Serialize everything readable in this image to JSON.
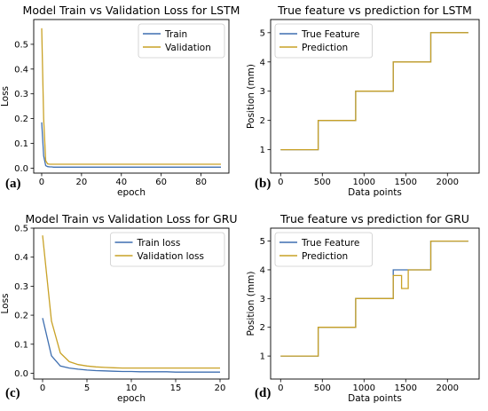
{
  "colors": {
    "blue": "#3f6fb0",
    "gold": "#c9a227",
    "axis": "#000000",
    "background": "#ffffff"
  },
  "chart_data": [
    {
      "type": "line",
      "letter": "(a)",
      "title": "Model Train vs Validation Loss for LSTM",
      "xlabel": "epoch",
      "ylabel": "Loss",
      "xlim": [
        -4,
        94
      ],
      "ylim": [
        -0.02,
        0.6
      ],
      "xticks": [
        0,
        20,
        40,
        60,
        80
      ],
      "yticks": [
        0.0,
        0.1,
        0.2,
        0.3,
        0.4,
        0.5
      ],
      "grid": false,
      "legend_position": "top-right",
      "x": [
        0,
        1,
        2,
        3,
        4,
        5,
        6,
        8,
        10,
        15,
        20,
        30,
        40,
        50,
        60,
        70,
        80,
        90
      ],
      "series": [
        {
          "name": "Train",
          "color": "blue",
          "values": [
            0.185,
            0.05,
            0.01,
            0.006,
            0.005,
            0.005,
            0.004,
            0.004,
            0.004,
            0.004,
            0.004,
            0.004,
            0.004,
            0.004,
            0.004,
            0.004,
            0.004,
            0.004
          ]
        },
        {
          "name": "Validation",
          "color": "gold",
          "values": [
            0.565,
            0.2,
            0.03,
            0.017,
            0.016,
            0.016,
            0.016,
            0.016,
            0.016,
            0.016,
            0.016,
            0.016,
            0.016,
            0.016,
            0.016,
            0.016,
            0.016,
            0.016
          ]
        }
      ]
    },
    {
      "type": "line",
      "letter": "(b)",
      "title": "True feature vs prediction for LSTM",
      "xlabel": "Data points",
      "ylabel": "Position (mm)",
      "xlim": [
        -120,
        2380
      ],
      "ylim": [
        0.2,
        5.45
      ],
      "xticks": [
        0,
        500,
        1000,
        1500,
        2000
      ],
      "yticks": [
        1,
        2,
        3,
        4,
        5
      ],
      "grid": false,
      "legend_position": "top-left",
      "x": [
        0,
        450,
        450,
        900,
        900,
        1350,
        1350,
        1800,
        1800,
        2250
      ],
      "series": [
        {
          "name": "True Feature",
          "color": "blue",
          "values": [
            1.0,
            1.0,
            2.0,
            2.0,
            3.0,
            3.0,
            4.0,
            4.0,
            5.0,
            5.0
          ]
        },
        {
          "name": "Prediction",
          "color": "gold",
          "values": [
            1.0,
            1.0,
            2.0,
            2.0,
            3.0,
            3.0,
            4.0,
            4.0,
            5.0,
            5.0
          ]
        }
      ]
    },
    {
      "type": "line",
      "letter": "(c)",
      "title": "Model Train vs Validation Loss for GRU",
      "xlabel": "epoch",
      "ylabel": "Loss",
      "xlim": [
        -1,
        21
      ],
      "ylim": [
        -0.02,
        0.5
      ],
      "xticks": [
        0,
        5,
        10,
        15,
        20
      ],
      "yticks": [
        0.0,
        0.1,
        0.2,
        0.3,
        0.4,
        0.5
      ],
      "grid": false,
      "legend_position": "top-right",
      "x": [
        0,
        1,
        2,
        3,
        4,
        5,
        6,
        7,
        8,
        9,
        10,
        11,
        12,
        13,
        14,
        15,
        16,
        17,
        18,
        19,
        20
      ],
      "series": [
        {
          "name": "Train loss",
          "color": "blue",
          "values": [
            0.19,
            0.06,
            0.025,
            0.018,
            0.014,
            0.011,
            0.009,
            0.008,
            0.007,
            0.006,
            0.006,
            0.005,
            0.005,
            0.005,
            0.005,
            0.004,
            0.004,
            0.004,
            0.004,
            0.004,
            0.004
          ]
        },
        {
          "name": "Validation loss",
          "color": "gold",
          "values": [
            0.475,
            0.18,
            0.07,
            0.04,
            0.03,
            0.025,
            0.022,
            0.02,
            0.019,
            0.018,
            0.018,
            0.018,
            0.018,
            0.018,
            0.018,
            0.018,
            0.018,
            0.018,
            0.018,
            0.018,
            0.018
          ]
        }
      ]
    },
    {
      "type": "line",
      "letter": "(d)",
      "title": "True feature vs prediction for GRU",
      "xlabel": "Data points",
      "ylabel": "Position (mm)",
      "xlim": [
        -120,
        2380
      ],
      "ylim": [
        0.2,
        5.45
      ],
      "xticks": [
        0,
        500,
        1000,
        1500,
        2000
      ],
      "yticks": [
        1,
        2,
        3,
        4,
        5
      ],
      "grid": false,
      "legend_position": "top-left",
      "x": [
        0,
        450,
        450,
        900,
        900,
        1350,
        1350,
        1450,
        1450,
        1530,
        1530,
        1800,
        1800,
        2250
      ],
      "series": [
        {
          "name": "True Feature",
          "color": "blue",
          "values": [
            1.0,
            1.0,
            2.0,
            2.0,
            3.0,
            3.0,
            4.0,
            4.0,
            4.0,
            4.0,
            4.0,
            4.0,
            5.0,
            5.0
          ]
        },
        {
          "name": "Prediction",
          "color": "gold",
          "values": [
            1.0,
            1.0,
            2.0,
            2.0,
            3.0,
            3.0,
            3.8,
            3.8,
            3.35,
            3.35,
            4.0,
            4.0,
            5.0,
            5.0
          ]
        }
      ]
    }
  ]
}
